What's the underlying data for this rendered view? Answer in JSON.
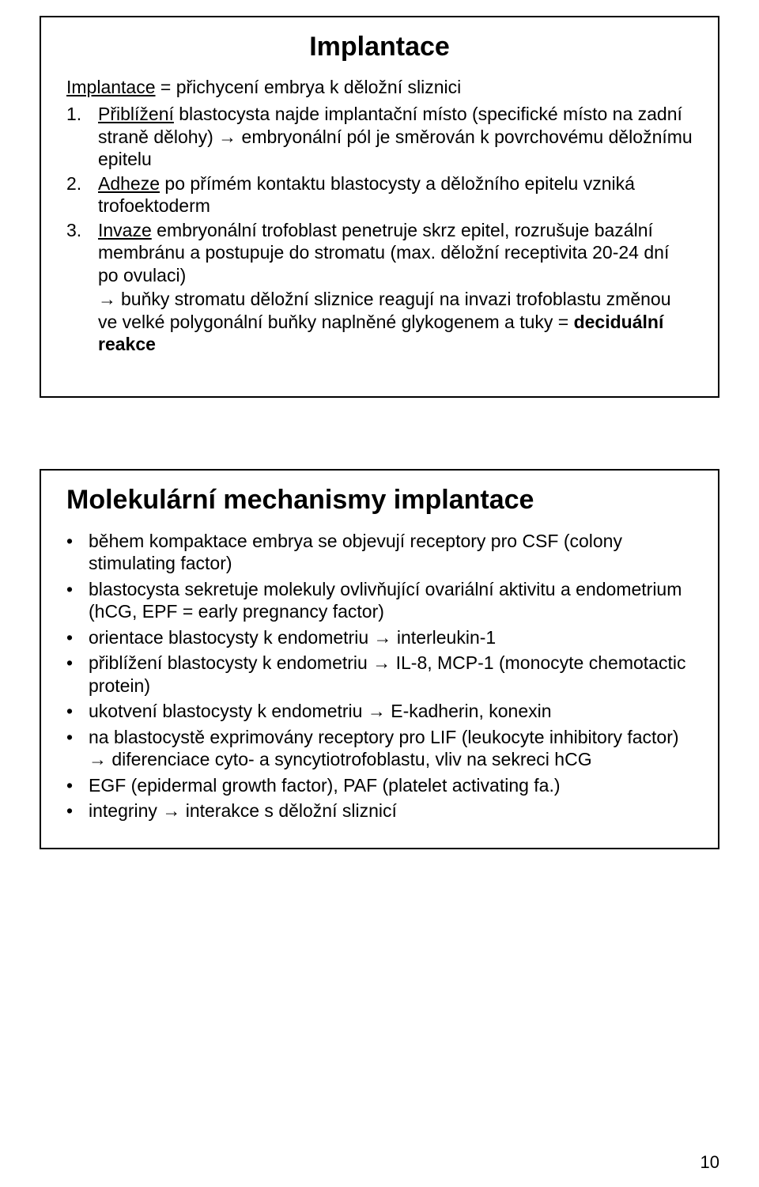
{
  "page_number": "10",
  "slide1": {
    "title": "Implantace",
    "definition_prefix": "Implantace",
    "definition_text": " = přichycení embrya k děložní sliznici",
    "items": [
      {
        "num": "1.",
        "label_underlined": "Přiblížení",
        "rest": " blastocysta najde implantační místo (specifické místo na zadní straně dělohy) → embryonální pól je směrován k povrchovému děložnímu epitelu"
      },
      {
        "num": "2.",
        "label_underlined": "Adheze",
        "rest": " po přímém kontaktu blastocysty a děložního epitelu vzniká trofoektoderm"
      },
      {
        "num": "3.",
        "label_underlined": "Invaze",
        "rest": " embryonální trofoblast penetruje skrz epitel, rozrušuje bazální membránu a postupuje do stromatu (max. děložní receptivita 20-24 dní po ovulaci)"
      }
    ],
    "sub_arrow_text": "buňky stromatu děložní sliznice reagují na invazi trofoblastu změnou ve velké polygonální buňky naplněné glykogenem a tuky = ",
    "sub_arrow_bold": "deciduální reakce"
  },
  "slide2": {
    "title": "Molekulární mechanismy implantace",
    "bullets": [
      {
        "text": "během kompaktace embrya se objevují receptory pro CSF (colony stimulating factor)"
      },
      {
        "text": "blastocysta sekretuje molekuly ovlivňující ovariální aktivitu a endometrium (hCG, EPF = early pregnancy factor)"
      },
      {
        "text": "orientace blastocysty k endometriu → interleukin-1"
      },
      {
        "text": "přiblížení blastocysty k endometriu → IL-8, MCP-1 (monocyte chemotactic protein)"
      },
      {
        "text": "ukotvení blastocysty k endometriu → E-kadherin, konexin"
      },
      {
        "text": "na blastocystě exprimovány receptory pro LIF (leukocyte inhibitory factor) → diferenciace cyto- a syncytiotrofoblastu, vliv na sekreci hCG"
      },
      {
        "text": "EGF (epidermal growth factor), PAF (platelet activating fa.)"
      },
      {
        "text": "integriny → interakce s děložní sliznicí"
      }
    ]
  }
}
